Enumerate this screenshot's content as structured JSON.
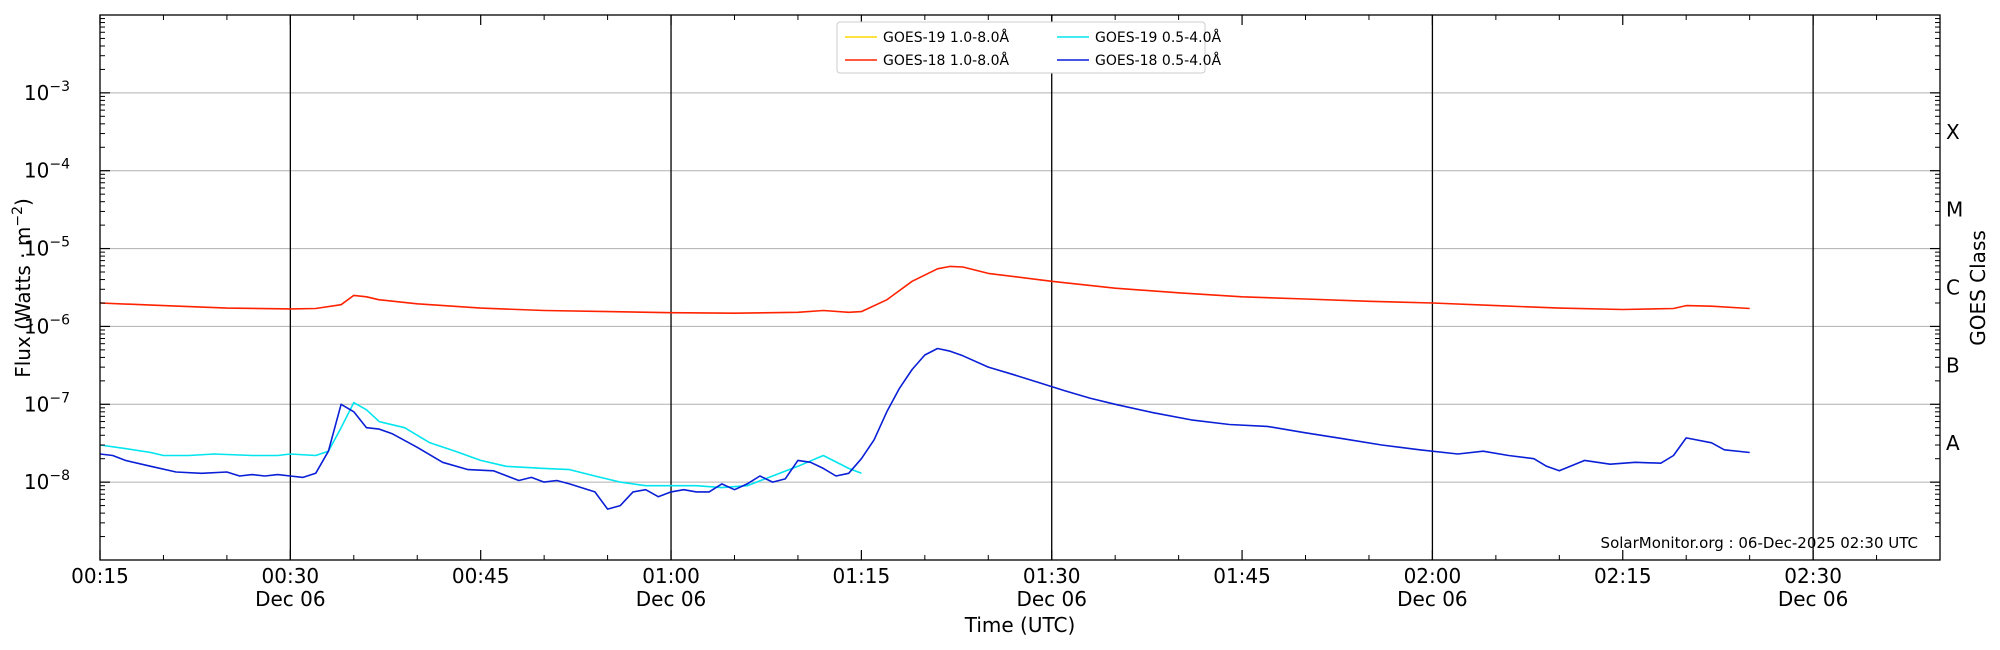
{
  "chart_data": {
    "type": "line",
    "ylabel": "Flux (Watts · m",
    "ylabel_exp": "−2",
    "ylabel_close": ")",
    "xlabel": "Time (UTC)",
    "right_label": "GOES Class",
    "credit": "SolarMonitor.org : 06-Dec-2025 02:30 UTC",
    "xlim": [
      "00:15",
      "02:40"
    ],
    "ylim": [
      1e-09,
      0.01
    ],
    "yscale": "log",
    "grid": "horizontal at decades; vertical lines every 30 min",
    "legend_position": "top-center",
    "x_ticks": [
      {
        "time": "00:15",
        "line1": "00:15",
        "line2": ""
      },
      {
        "time": "00:30",
        "line1": "00:30",
        "line2": "Dec 06"
      },
      {
        "time": "00:45",
        "line1": "00:45",
        "line2": ""
      },
      {
        "time": "01:00",
        "line1": "01:00",
        "line2": "Dec 06"
      },
      {
        "time": "01:15",
        "line1": "01:15",
        "line2": ""
      },
      {
        "time": "01:30",
        "line1": "01:30",
        "line2": "Dec 06"
      },
      {
        "time": "01:45",
        "line1": "01:45",
        "line2": ""
      },
      {
        "time": "02:00",
        "line1": "02:00",
        "line2": "Dec 06"
      },
      {
        "time": "02:15",
        "line1": "02:15",
        "line2": ""
      },
      {
        "time": "02:30",
        "line1": "02:30",
        "line2": "Dec 06"
      }
    ],
    "vlines": [
      "00:30",
      "01:00",
      "01:30",
      "02:00",
      "02:30"
    ],
    "y_ticks": [
      {
        "exp": -3,
        "base": "10",
        "sup": "−3"
      },
      {
        "exp": -4,
        "base": "10",
        "sup": "−4"
      },
      {
        "exp": -5,
        "base": "10",
        "sup": "−5"
      },
      {
        "exp": -6,
        "base": "10",
        "sup": "−6"
      },
      {
        "exp": -7,
        "base": "10",
        "sup": "−7"
      },
      {
        "exp": -8,
        "base": "10",
        "sup": "−8"
      }
    ],
    "goes_classes": [
      {
        "label": "X",
        "center_log": -3.5
      },
      {
        "label": "M",
        "center_log": -4.5
      },
      {
        "label": "C",
        "center_log": -5.5
      },
      {
        "label": "B",
        "center_log": -6.5
      },
      {
        "label": "A",
        "center_log": -7.5
      }
    ],
    "series": [
      {
        "name": "GOES-19 1.0-8.0Å",
        "color": "#ffd700",
        "x": [],
        "y": []
      },
      {
        "name": "GOES-19 0.5-4.0Å",
        "color": "#00e5ee",
        "x": [
          "00:15",
          "00:17",
          "00:19",
          "00:20",
          "00:22",
          "00:24",
          "00:27",
          "00:29",
          "00:30",
          "00:32",
          "00:33",
          "00:34",
          "00:35",
          "00:36",
          "00:37",
          "00:39",
          "00:41",
          "00:43",
          "00:45",
          "00:47",
          "00:50",
          "00:52",
          "00:54",
          "00:56",
          "00:58",
          "01:00",
          "01:02",
          "01:04",
          "01:06",
          "01:08",
          "01:10",
          "01:12",
          "01:14",
          "01:15"
        ],
        "y": [
          3e-08,
          2.7e-08,
          2.4e-08,
          2.2e-08,
          2.2e-08,
          2.3e-08,
          2.2e-08,
          2.2e-08,
          2.3e-08,
          2.2e-08,
          2.5e-08,
          5e-08,
          1.05e-07,
          8.5e-08,
          6e-08,
          5e-08,
          3.2e-08,
          2.5e-08,
          1.9e-08,
          1.6e-08,
          1.5e-08,
          1.45e-08,
          1.2e-08,
          1e-08,
          9e-09,
          9e-09,
          9e-09,
          8.5e-09,
          9e-09,
          1.2e-08,
          1.6e-08,
          2.2e-08,
          1.5e-08,
          1.3e-08
        ]
      },
      {
        "name": "GOES-18 1.0-8.0Å",
        "color": "#ff2200",
        "x": [
          "00:15",
          "00:20",
          "00:25",
          "00:30",
          "00:32",
          "00:34",
          "00:35",
          "00:36",
          "00:37",
          "00:40",
          "00:45",
          "00:50",
          "00:55",
          "01:00",
          "01:05",
          "01:10",
          "01:12",
          "01:14",
          "01:15",
          "01:17",
          "01:19",
          "01:21",
          "01:22",
          "01:23",
          "01:25",
          "01:30",
          "01:35",
          "01:40",
          "01:45",
          "01:50",
          "01:55",
          "02:00",
          "02:05",
          "02:10",
          "02:15",
          "02:19",
          "02:20",
          "02:22",
          "02:25"
        ],
        "y": [
          2e-06,
          1.85e-06,
          1.72e-06,
          1.68e-06,
          1.7e-06,
          1.9e-06,
          2.5e-06,
          2.4e-06,
          2.2e-06,
          1.95e-06,
          1.72e-06,
          1.6e-06,
          1.55e-06,
          1.5e-06,
          1.48e-06,
          1.52e-06,
          1.6e-06,
          1.52e-06,
          1.55e-06,
          2.2e-06,
          3.8e-06,
          5.5e-06,
          5.9e-06,
          5.8e-06,
          4.8e-06,
          3.8e-06,
          3.1e-06,
          2.7e-06,
          2.4e-06,
          2.25e-06,
          2.1e-06,
          2e-06,
          1.85e-06,
          1.72e-06,
          1.65e-06,
          1.7e-06,
          1.85e-06,
          1.82e-06,
          1.7e-06
        ]
      },
      {
        "name": "GOES-18 0.5-4.0Å",
        "color": "#0a1fd6",
        "x": [
          "00:15",
          "00:16",
          "00:17",
          "00:19",
          "00:21",
          "00:23",
          "00:25",
          "00:26",
          "00:27",
          "00:28",
          "00:29",
          "00:30",
          "00:31",
          "00:32",
          "00:33",
          "00:34",
          "00:35",
          "00:36",
          "00:37",
          "00:38",
          "00:40",
          "00:42",
          "00:44",
          "00:46",
          "00:48",
          "00:49",
          "00:50",
          "00:51",
          "00:52",
          "00:54",
          "00:55",
          "00:56",
          "00:57",
          "00:58",
          "00:59",
          "01:00",
          "01:01",
          "01:02",
          "01:03",
          "01:04",
          "01:05",
          "01:06",
          "01:07",
          "01:08",
          "01:09",
          "01:10",
          "01:11",
          "01:12",
          "01:13",
          "01:14",
          "01:15",
          "01:16",
          "01:17",
          "01:18",
          "01:19",
          "01:20",
          "01:21",
          "01:22",
          "01:23",
          "01:25",
          "01:27",
          "01:29",
          "01:31",
          "01:33",
          "01:35",
          "01:38",
          "01:41",
          "01:44",
          "01:47",
          "01:50",
          "01:53",
          "01:56",
          "01:59",
          "02:02",
          "02:04",
          "02:06",
          "02:08",
          "02:09",
          "02:10",
          "02:12",
          "02:14",
          "02:16",
          "02:18",
          "02:19",
          "02:20",
          "02:22",
          "02:23",
          "02:25"
        ],
        "y": [
          2.3e-08,
          2.2e-08,
          1.9e-08,
          1.6e-08,
          1.35e-08,
          1.3e-08,
          1.35e-08,
          1.2e-08,
          1.25e-08,
          1.2e-08,
          1.25e-08,
          1.2e-08,
          1.15e-08,
          1.3e-08,
          2.5e-08,
          1e-07,
          8e-08,
          5e-08,
          4.8e-08,
          4.2e-08,
          2.8e-08,
          1.8e-08,
          1.45e-08,
          1.4e-08,
          1.05e-08,
          1.15e-08,
          1e-08,
          1.05e-08,
          9.5e-09,
          7.5e-09,
          4.5e-09,
          5e-09,
          7.5e-09,
          8e-09,
          6.5e-09,
          7.5e-09,
          8e-09,
          7.5e-09,
          7.5e-09,
          9.5e-09,
          8e-09,
          9.5e-09,
          1.2e-08,
          1e-08,
          1.1e-08,
          1.9e-08,
          1.8e-08,
          1.5e-08,
          1.2e-08,
          1.3e-08,
          2e-08,
          3.5e-08,
          8e-08,
          1.6e-07,
          2.8e-07,
          4.3e-07,
          5.2e-07,
          4.8e-07,
          4.2e-07,
          3e-07,
          2.4e-07,
          1.9e-07,
          1.5e-07,
          1.2e-07,
          1e-07,
          7.8e-08,
          6.3e-08,
          5.5e-08,
          5.2e-08,
          4.3e-08,
          3.6e-08,
          3e-08,
          2.6e-08,
          2.3e-08,
          2.5e-08,
          2.2e-08,
          2e-08,
          1.6e-08,
          1.4e-08,
          1.9e-08,
          1.7e-08,
          1.8e-08,
          1.75e-08,
          2.2e-08,
          3.7e-08,
          3.2e-08,
          2.6e-08,
          2.4e-08
        ]
      }
    ]
  }
}
